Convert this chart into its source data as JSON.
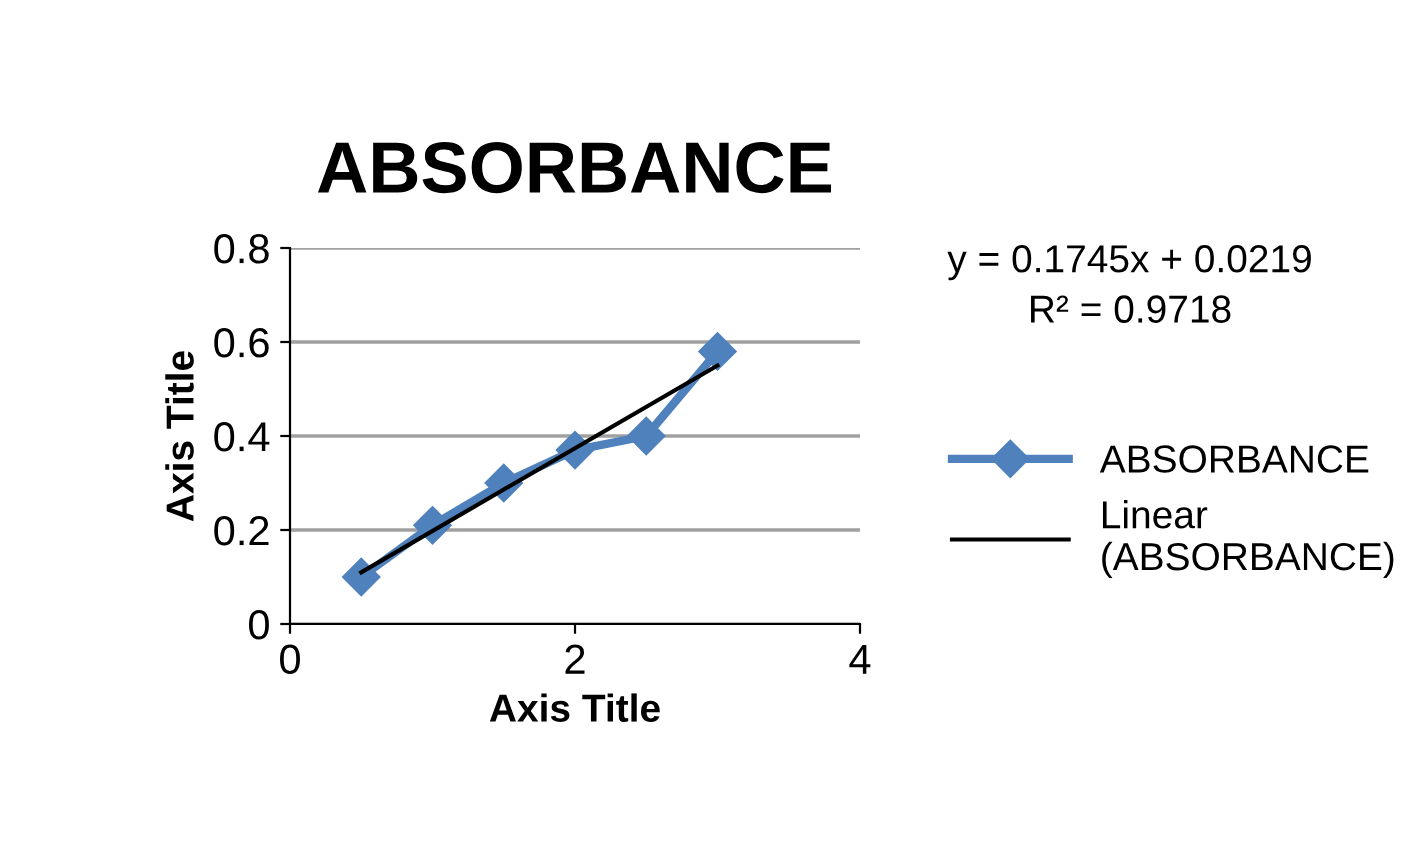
{
  "chart_data": {
    "type": "line",
    "title": "ABSORBANCE",
    "xlabel": "Axis Title",
    "ylabel": "Axis Title",
    "x": [
      0.5,
      1,
      1.5,
      2,
      2.5,
      3
    ],
    "series": [
      {
        "name": "ABSORBANCE",
        "color": "#4f81bd",
        "marker": "diamond",
        "values": [
          0.1,
          0.21,
          0.3,
          0.37,
          0.4,
          0.58
        ]
      },
      {
        "name": "Linear (ABSORBANCE)",
        "color": "#000000",
        "marker": "none",
        "x": [
          0.5,
          3
        ],
        "values": [
          0.11,
          0.55
        ]
      }
    ],
    "annotations": [
      "y = 0.1745x + 0.0219\nR² = 0.9718"
    ],
    "xlim": [
      0,
      4
    ],
    "xticks": [
      0,
      2,
      4
    ],
    "ylim": [
      0,
      0.8
    ],
    "yticks": [
      0,
      0.2,
      0.4,
      0.6,
      0.8
    ],
    "grid": "y",
    "legend": "right"
  }
}
